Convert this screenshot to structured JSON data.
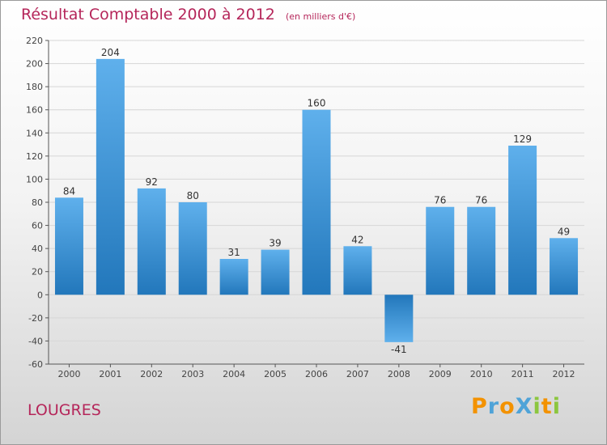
{
  "colors": {
    "title": "#b5265a",
    "bar_dark": "#2277bb",
    "bar_light": "#5fb0ec",
    "axis": "#555555",
    "grid": "#d6d6d6"
  },
  "commune": "LOUGRES",
  "logo": {
    "text": "ProXiti",
    "letters": [
      {
        "ch": "P",
        "color": "#f39200"
      },
      {
        "ch": "r",
        "color": "#4fa3d8"
      },
      {
        "ch": "o",
        "color": "#f39200"
      },
      {
        "ch": "X",
        "color": "#4fa3d8"
      },
      {
        "ch": "i",
        "color": "#8cc63f"
      },
      {
        "ch": "t",
        "color": "#f39200"
      },
      {
        "ch": "i",
        "color": "#8cc63f"
      }
    ]
  },
  "chart_data": {
    "type": "bar",
    "title": "Résultat Comptable 2000 à 2012",
    "subtitle": "(en milliers d'€)",
    "xlabel": "",
    "ylabel": "",
    "categories": [
      "2000",
      "2001",
      "2002",
      "2003",
      "2004",
      "2005",
      "2006",
      "2007",
      "2008",
      "2009",
      "2010",
      "2011",
      "2012"
    ],
    "values": [
      84,
      204,
      92,
      80,
      31,
      39,
      160,
      42,
      -41,
      76,
      76,
      129,
      49
    ],
    "ylim": [
      -60,
      220
    ],
    "yticks": [
      220,
      200,
      180,
      160,
      140,
      120,
      100,
      80,
      60,
      40,
      20,
      0,
      -20,
      -40,
      -60
    ],
    "grid": true,
    "legend": "none"
  }
}
